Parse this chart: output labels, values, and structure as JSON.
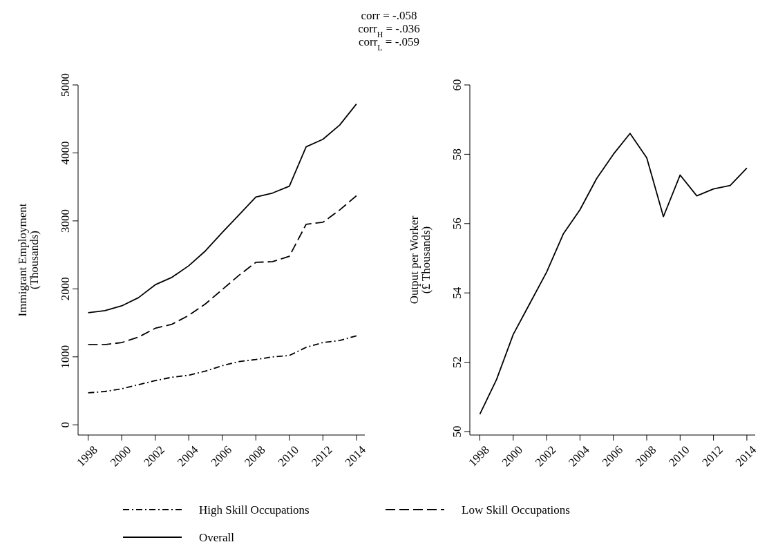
{
  "chart_data": [
    {
      "type": "line",
      "title": "corr = -.058",
      "annotations": [
        "corr$_{H}$ = -.036",
        "corr$_{L}$ = -.059"
      ],
      "ylabel": "Immigrant Employment\n(Thousands)",
      "x": [
        1998,
        1999,
        2000,
        2001,
        2002,
        2003,
        2004,
        2005,
        2006,
        2007,
        2008,
        2009,
        2010,
        2011,
        2012,
        2013,
        2014
      ],
      "xlim": [
        1997.4,
        2014.5
      ],
      "xticks": [
        1998,
        2000,
        2002,
        2004,
        2006,
        2008,
        2010,
        2012,
        2014
      ],
      "ylim": [
        -150,
        5000
      ],
      "yticks": [
        0,
        1000,
        2000,
        3000,
        4000,
        5000
      ],
      "grid": false,
      "legend": "bottom",
      "series": [
        {
          "name": "High Skill Occupations",
          "color": "#000000",
          "line_style": "dashdot",
          "values": [
            470,
            490,
            530,
            590,
            650,
            700,
            730,
            790,
            870,
            930,
            960,
            1000,
            1020,
            1140,
            1210,
            1240,
            1310
          ]
        },
        {
          "name": "Low Skill Occupations",
          "color": "#000000",
          "line_style": "dashed",
          "values": [
            1180,
            1180,
            1210,
            1290,
            1420,
            1480,
            1610,
            1780,
            1990,
            2200,
            2390,
            2400,
            2480,
            2950,
            2980,
            3160,
            3370
          ]
        },
        {
          "name": "Overall",
          "color": "#000000",
          "line_style": "solid",
          "values": [
            1650,
            1680,
            1750,
            1870,
            2060,
            2170,
            2340,
            2560,
            2830,
            3090,
            3350,
            3410,
            3510,
            4090,
            4200,
            4410,
            4720
          ]
        }
      ]
    },
    {
      "type": "line",
      "ylabel": "Output per Worker\n(£ Thousands)",
      "x": [
        1998,
        1999,
        2000,
        2001,
        2002,
        2003,
        2004,
        2005,
        2006,
        2007,
        2008,
        2009,
        2010,
        2011,
        2012,
        2013,
        2014
      ],
      "xlim": [
        1997.4,
        2014.5
      ],
      "xticks": [
        1998,
        2000,
        2002,
        2004,
        2006,
        2008,
        2010,
        2012,
        2014
      ],
      "ylim": [
        49.9,
        60
      ],
      "yticks": [
        50,
        52,
        54,
        56,
        58,
        60
      ],
      "grid": false,
      "series": [
        {
          "color": "#000000",
          "line_style": "solid",
          "values": [
            50.5,
            51.5,
            52.8,
            53.7,
            54.6,
            55.7,
            56.4,
            57.3,
            58.0,
            58.6,
            57.9,
            56.2,
            57.4,
            56.8,
            57.0,
            57.1,
            57.6
          ]
        }
      ]
    }
  ]
}
